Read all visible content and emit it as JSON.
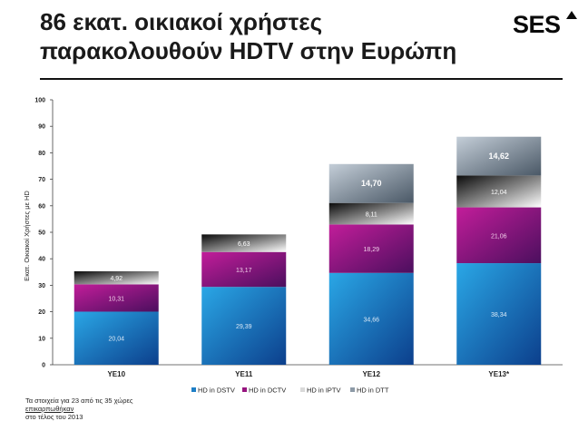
{
  "header": {
    "title_line1": "86 εκατ. οικιακοί χρήστες",
    "title_line2": "παρακολουθούν HDTV στην Ευρώπη",
    "logo": "SES"
  },
  "colors": {
    "HD in DSTV": "#1f7fc6",
    "HD in DCTV": "#97157f",
    "HD in IPTV": "#d9d9d9",
    "HD in DTT": "#8d9aa7"
  },
  "chart_data": {
    "type": "bar",
    "stacked": true,
    "categories": [
      "YE10",
      "YE11",
      "YE12",
      "YE13*"
    ],
    "series": [
      {
        "name": "HD in DSTV",
        "values": [
          20.04,
          29.39,
          34.66,
          38.34
        ]
      },
      {
        "name": "HD in DCTV",
        "values": [
          10.31,
          13.17,
          18.29,
          21.06
        ]
      },
      {
        "name": "HD in IPTV",
        "values": [
          4.92,
          6.63,
          8.11,
          12.04
        ]
      },
      {
        "name": "HD in DTT",
        "values": [
          null,
          null,
          14.7,
          14.62
        ]
      }
    ],
    "value_labels": [
      [
        "20,04",
        "10,31",
        "4,92",
        ""
      ],
      [
        "29,39",
        "13,17",
        "6,63",
        ""
      ],
      [
        "34,66",
        "18,29",
        "8,11",
        "14,70"
      ],
      [
        "38,34",
        "21,06",
        "12,04",
        "14,62"
      ]
    ],
    "ylabel": "Εκατ. Οικιακοί Χρήστες με HD",
    "xlabel": "",
    "ylim": [
      0,
      100
    ],
    "yticks": [
      0,
      10,
      20,
      30,
      40,
      50,
      60,
      70,
      80,
      90,
      100
    ],
    "grid": false,
    "legend_position": "bottom"
  },
  "footnote": {
    "line1": "Τα στοιχεία για 23 από τις 35  χώρες",
    "line2a": "επικαρπωθήκαν",
    "line2b": " στο τέλος του 2013"
  }
}
